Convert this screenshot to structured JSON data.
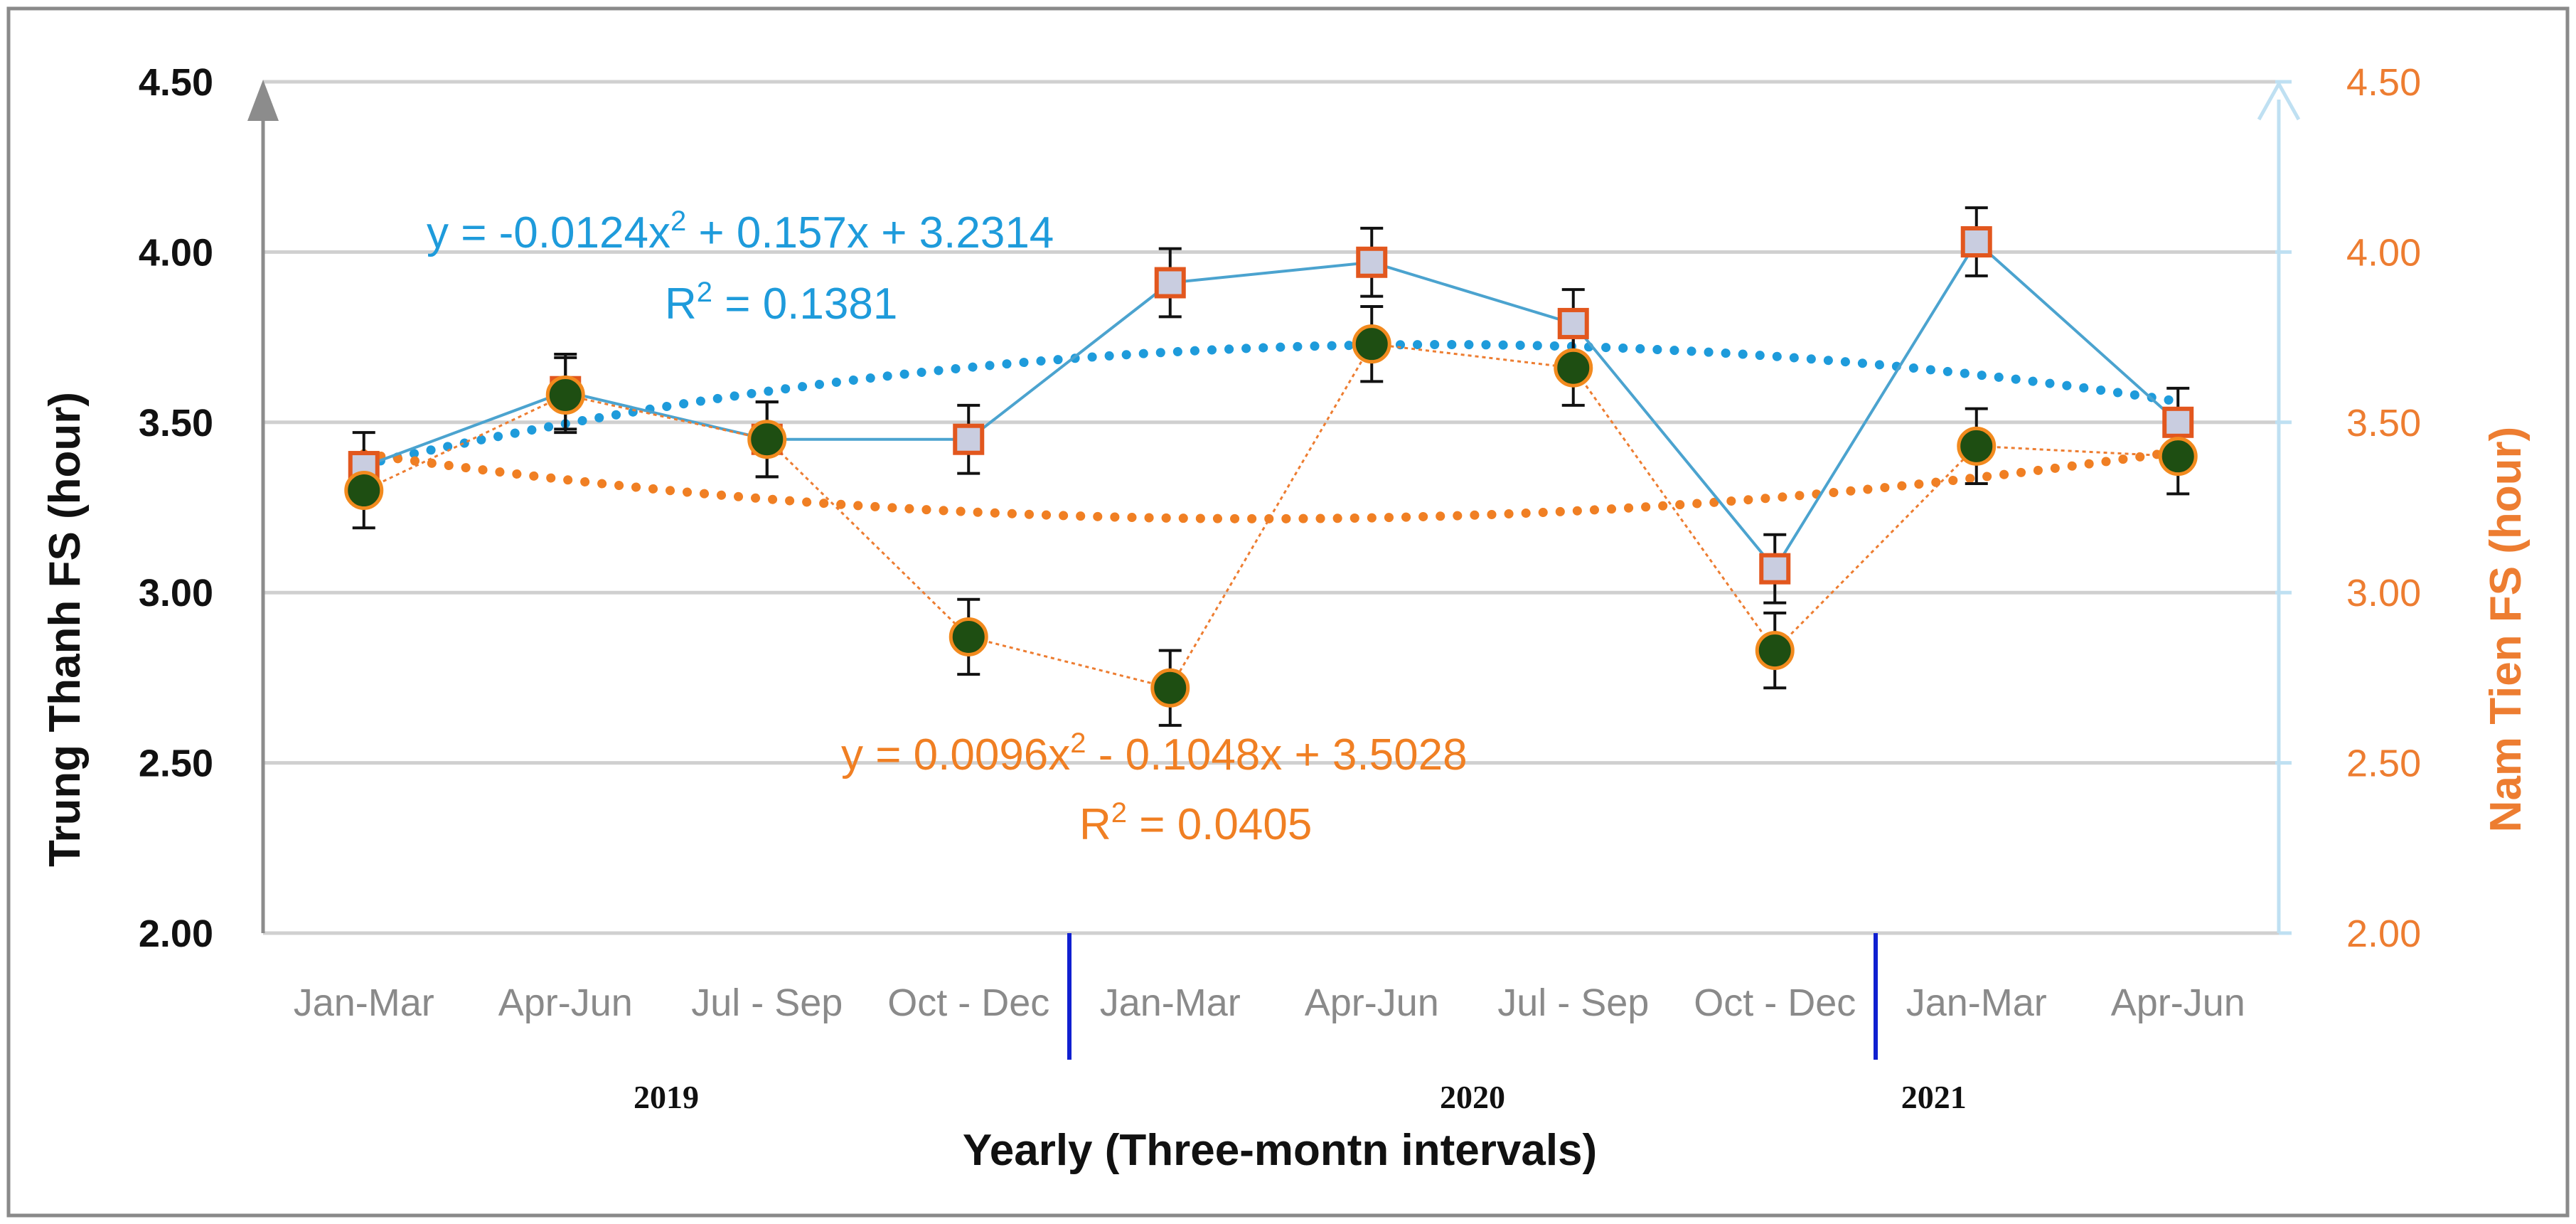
{
  "chart_data": {
    "type": "line",
    "xlabel": "Yearly (Three-montn intervals)",
    "ylabel_left": "Trung Thanh FS (hour)",
    "ylabel_right": "Nam Tien FS (hour)",
    "ylim": [
      2.0,
      4.5
    ],
    "y_ticks": [
      "2.00",
      "2.50",
      "3.00",
      "3.50",
      "4.00",
      "4.50"
    ],
    "categories": [
      "Jan-Mar",
      "Apr-Jun",
      "Jul -   Sep",
      "Oct - Dec",
      "Jan-Mar",
      "Apr-Jun",
      "Jul -   Sep",
      "Oct - Dec",
      "Jan-Mar",
      "Apr-Jun"
    ],
    "years": [
      {
        "label": "2019",
        "first_index": 0,
        "last_index": 3
      },
      {
        "label": "2020",
        "first_index": 4,
        "last_index": 7
      },
      {
        "label": "2021",
        "first_index": 8,
        "last_index": 9
      }
    ],
    "grid": true,
    "series": [
      {
        "name": "Trung Thanh FS",
        "axis": "left",
        "values": [
          3.37,
          3.59,
          3.45,
          3.45,
          3.91,
          3.97,
          3.79,
          3.07,
          4.03,
          3.5
        ],
        "error": [
          0.1,
          0.11,
          0.11,
          0.1,
          0.1,
          0.1,
          0.1,
          0.1,
          0.1,
          0.1
        ]
      },
      {
        "name": "Nam Tien FS",
        "axis": "right",
        "values": [
          3.3,
          3.58,
          3.45,
          2.87,
          2.72,
          3.73,
          3.66,
          2.83,
          3.43,
          3.4
        ],
        "error": [
          0.11,
          0.11,
          0.11,
          0.11,
          0.11,
          0.11,
          0.11,
          0.11,
          0.11,
          0.11
        ]
      }
    ],
    "trendlines": [
      {
        "series": "Trung Thanh FS",
        "coefficients": [
          -0.0124,
          0.157,
          3.2314
        ],
        "equation_prefix": "y = -0.0124x",
        "equation_suffix": " + 0.157x + 3.2314",
        "r2_prefix": "R",
        "r2_suffix": " = 0.1381"
      },
      {
        "series": "Nam Tien FS",
        "coefficients": [
          0.0096,
          -0.1048,
          3.5028
        ],
        "equation_prefix": "y = 0.0096x",
        "equation_suffix": " - 0.1048x + 3.5028",
        "r2_prefix": "R",
        "r2_suffix": " = 0.0405"
      }
    ],
    "colors": {
      "trung_thanh_line": "#4BA3CF",
      "nam_tien_line": "#ED7D31",
      "trend_blue": "#1E9BDB",
      "trend_orange": "#F07F23",
      "green_marker": "#1E4E12",
      "square_fill": "#C9CDE0",
      "grid": "#D0D0D0",
      "right_axis": "#BFE0F2",
      "left_axis": "#8C8C8C",
      "year_divider": "#1020D0"
    }
  }
}
